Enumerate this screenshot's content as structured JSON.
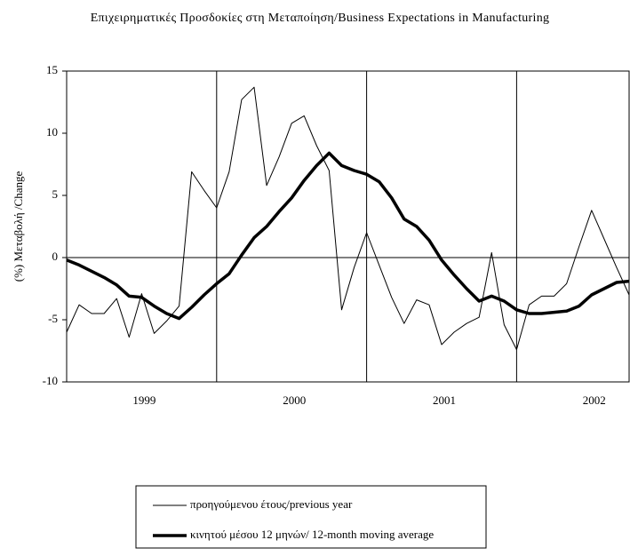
{
  "chart_data": {
    "type": "line",
    "title": "Επιχειρηματικές Προσδοκίες στη Μεταποίηση/Business Expectations in Manufacturing",
    "y_label": "(%) Μεταβολή /Change",
    "categories": [
      null,
      null,
      null,
      null,
      null,
      null,
      "1999",
      null,
      null,
      null,
      null,
      null,
      null,
      null,
      null,
      null,
      null,
      null,
      "2000",
      null,
      null,
      null,
      null,
      null,
      null,
      null,
      null,
      null,
      null,
      null,
      "2001",
      null,
      null,
      null,
      null,
      null,
      null,
      null,
      null,
      null,
      null,
      null,
      "2002",
      null,
      null,
      null
    ],
    "series": [
      {
        "name": "προηγούμενου έτους/previous year",
        "color": "#000000",
        "values": [
          -6,
          -3.8,
          -4.5,
          -4.5,
          -3.3,
          -6.4,
          -2.9,
          -6.1,
          -5.1,
          -3.9,
          6.9,
          5.4,
          4.0,
          6.9,
          12.7,
          13.7,
          5.8,
          8.1,
          10.8,
          11.4,
          9.0,
          7.0,
          -4.2,
          -0.8,
          2.0,
          -0.6,
          -3.2,
          -5.3,
          -3.4,
          -3.8,
          -7.0,
          -6.0,
          -5.3,
          -4.8,
          0.4,
          -5.4,
          -7.4,
          -3.8,
          -3.1,
          -3.1,
          -2.1,
          0.9,
          3.8,
          1.5,
          -0.8,
          -3.0
        ]
      },
      {
        "name": "κινητού μέσου 12 μηνών/ 12-month moving average",
        "color": "#000000",
        "values": [
          -0.2,
          -0.6,
          -1.1,
          -1.6,
          -2.2,
          -3.1,
          -3.2,
          -3.9,
          -4.5,
          -4.9,
          -4.0,
          -3.0,
          -2.1,
          -1.3,
          0.2,
          1.6,
          2.5,
          3.7,
          4.8,
          6.2,
          7.4,
          8.4,
          7.4,
          7.0,
          6.7,
          6.1,
          4.8,
          3.1,
          2.5,
          1.4,
          -0.2,
          -1.4,
          -2.5,
          -3.5,
          -3.1,
          -3.5,
          -4.2,
          -4.5,
          -4.5,
          -4.4,
          -4.3,
          -3.9,
          -3.0,
          -2.5,
          -2.0,
          -1.9
        ]
      }
    ],
    "ylim": [
      -10,
      15
    ],
    "yticks": [
      -10,
      -5,
      0,
      5,
      10,
      15
    ]
  }
}
